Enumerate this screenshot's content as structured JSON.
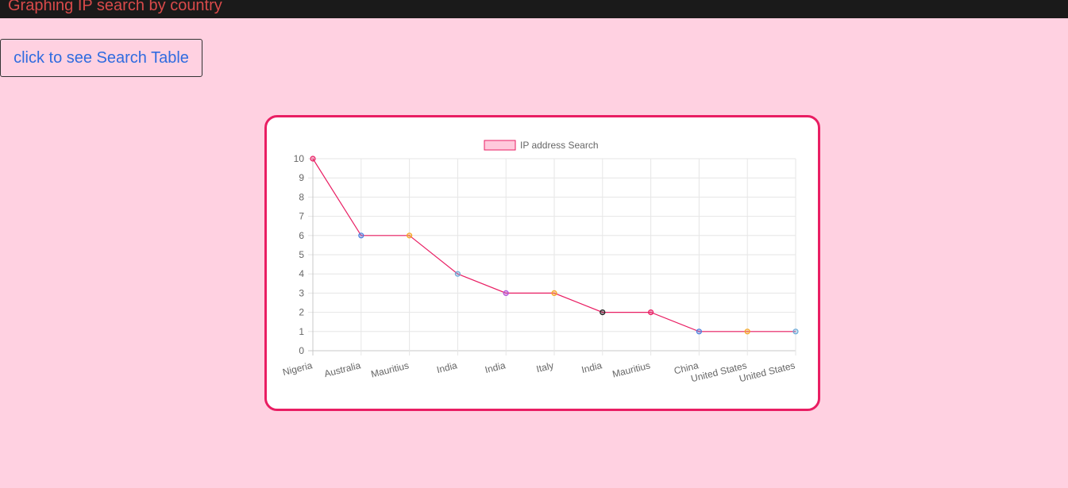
{
  "header": {
    "title": "Graphing IP search by country"
  },
  "actions": {
    "table_button_label": "click to see Search Table"
  },
  "colors": {
    "accent": "#e91e63",
    "background": "#ffd1e1",
    "header_bg": "#1a1a1a",
    "header_text": "#d94a4a",
    "link": "#2f6be0"
  },
  "chart_data": {
    "type": "line",
    "categories": [
      "Nigeria",
      "Australia",
      "Mauritius",
      "India",
      "India",
      "Italy",
      "India",
      "Mauritius",
      "China",
      "United States",
      "United States"
    ],
    "series": [
      {
        "name": "IP address Search",
        "values": [
          10,
          6,
          6,
          4,
          3,
          3,
          2,
          2,
          1,
          1,
          1
        ],
        "line_color": "#e91e63",
        "point_colors": [
          "#e91e63",
          "#4a7ee0",
          "#f5a623",
          "#6aa9d8",
          "#b34fd6",
          "#f5a623",
          "#222222",
          "#e91e63",
          "#4a7ee0",
          "#f5a623",
          "#6aa9d8"
        ]
      }
    ],
    "ylim": [
      0,
      10
    ],
    "yticks": [
      "0",
      "1",
      "2",
      "3",
      "4",
      "5",
      "6",
      "7",
      "8",
      "9",
      "10"
    ],
    "grid": true,
    "legend_position": "top-center"
  }
}
